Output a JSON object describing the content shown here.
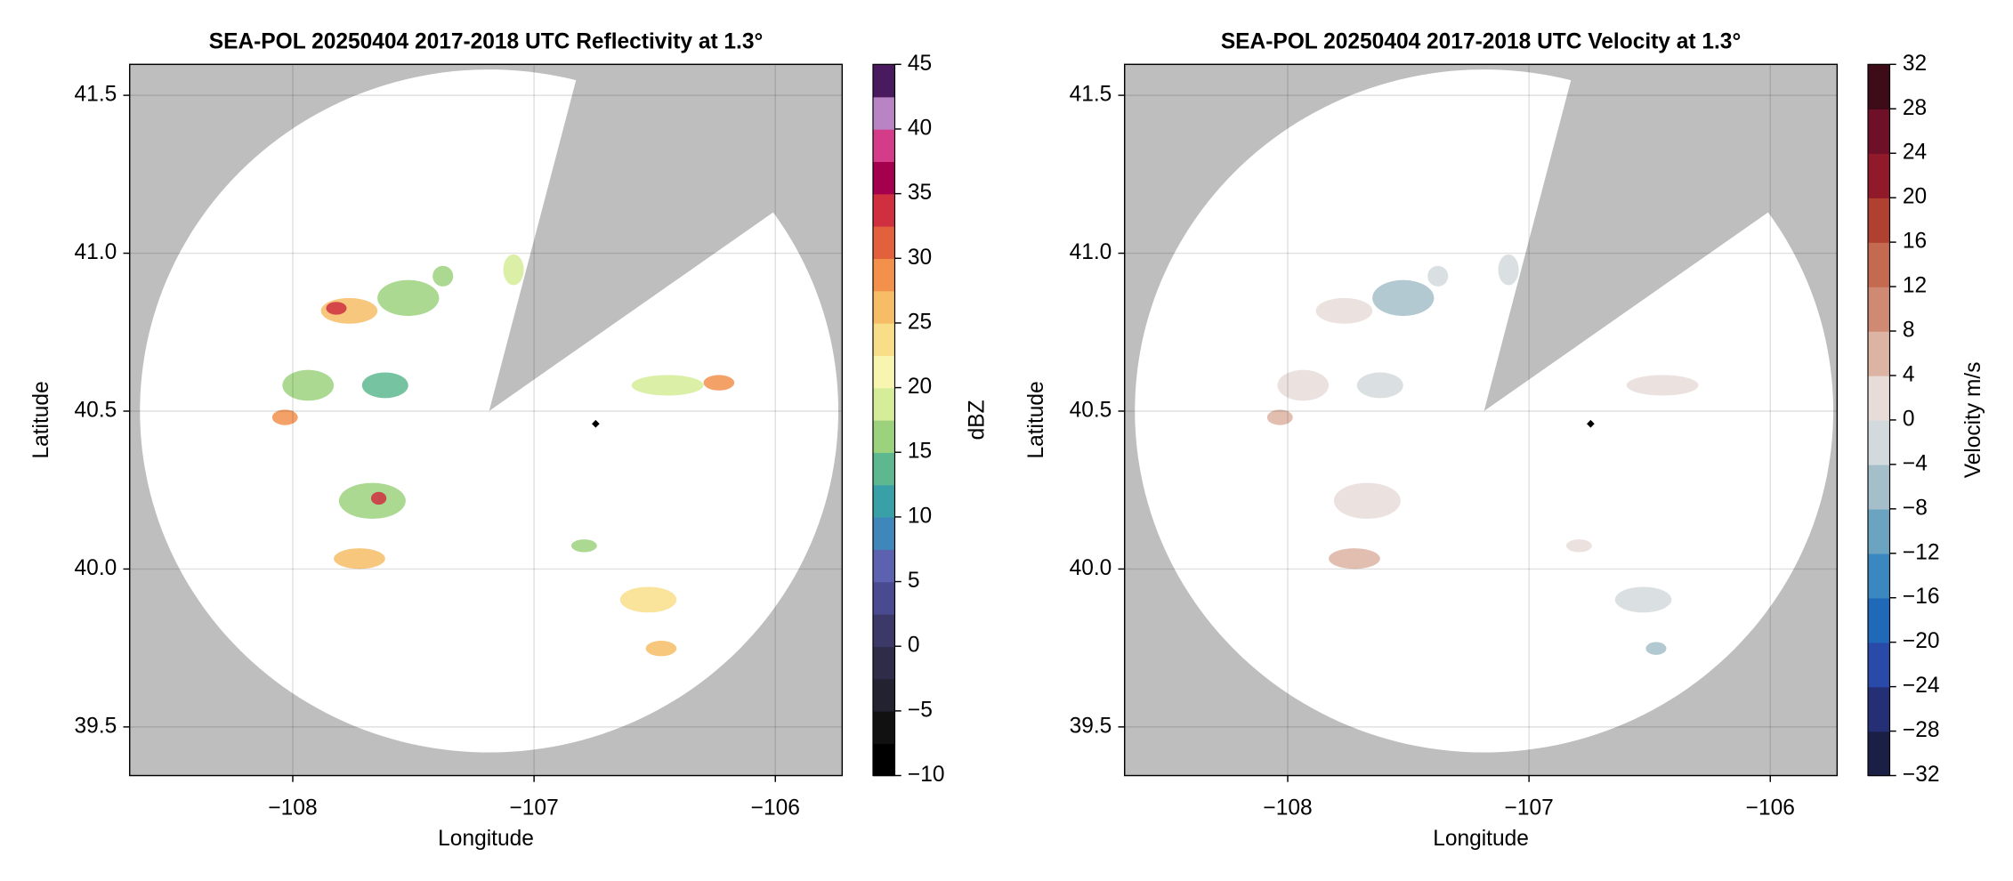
{
  "chart_data": [
    {
      "type": "map",
      "title": "SEA-POL 20250404 2017-2018 UTC Reflectivity at 1.3°",
      "xlabel": "Longitude",
      "ylabel": "Latitude",
      "xlim": [
        -108.676,
        -105.723
      ],
      "ylim": [
        39.346,
        41.598
      ],
      "xticks": [
        {
          "value": -108,
          "label": "−108"
        },
        {
          "value": -107,
          "label": "−107"
        },
        {
          "value": -106,
          "label": "−106"
        }
      ],
      "yticks": [
        39.5,
        {
          "value": 40.0,
          "label": "40.0"
        },
        40.5,
        {
          "value": 41.0,
          "label": "41.0"
        },
        41.5
      ],
      "grid": true,
      "colorbar": {
        "label": "dBZ",
        "lim": [
          -10,
          45
        ],
        "ticks": [
          {
            "value": -10,
            "label": "−10"
          },
          {
            "value": -5,
            "label": "−5"
          },
          0,
          5,
          10,
          15,
          20,
          25,
          30,
          35,
          40,
          45
        ],
        "colors": [
          "#000000",
          "#111111",
          "#222230",
          "#2f2c4a",
          "#3c3868",
          "#4a4a90",
          "#5c62b0",
          "#3f86bb",
          "#3aa0a8",
          "#5db890",
          "#9cd27e",
          "#d5ec98",
          "#f7f5b0",
          "#f9de8a",
          "#f6bd66",
          "#f2904c",
          "#e3603c",
          "#cf2f3f",
          "#a5004e",
          "#d43c8a",
          "#b884c4",
          "#4a1a5e"
        ]
      }
    },
    {
      "type": "map",
      "title": "SEA-POL 20250404 2017-2018 UTC Velocity at 1.3°",
      "xlabel": "Longitude",
      "ylabel": "Latitude",
      "xlim": [
        -108.676,
        -105.723
      ],
      "ylim": [
        39.346,
        41.598
      ],
      "xticks": [
        {
          "value": -108,
          "label": "−108"
        },
        {
          "value": -107,
          "label": "−107"
        },
        {
          "value": -106,
          "label": "−106"
        }
      ],
      "yticks": [
        39.5,
        {
          "value": 40.0,
          "label": "40.0"
        },
        40.5,
        {
          "value": 41.0,
          "label": "41.0"
        },
        41.5
      ],
      "grid": true,
      "colorbar": {
        "label": "Velocity m/s",
        "lim": [
          -32,
          32
        ],
        "ticks": [
          {
            "value": -32,
            "label": "−32"
          },
          {
            "value": -28,
            "label": "−28"
          },
          {
            "value": -24,
            "label": "−24"
          },
          {
            "value": -20,
            "label": "−20"
          },
          {
            "value": -16,
            "label": "−16"
          },
          {
            "value": -12,
            "label": "−12"
          },
          {
            "value": -8,
            "label": "−8"
          },
          {
            "value": -4,
            "label": "−4"
          },
          0,
          4,
          8,
          12,
          16,
          20,
          24,
          28,
          32
        ],
        "colors": [
          "#1a1f45",
          "#252f75",
          "#2a4aaa",
          "#2068b8",
          "#3a88bf",
          "#6aa4c0",
          "#a4bfc9",
          "#d3dadd",
          "#e8dcd8",
          "#ddb3a3",
          "#d08a74",
          "#c46a50",
          "#b04030",
          "#901a2a",
          "#6e1028",
          "#3e0b18"
        ]
      }
    }
  ]
}
